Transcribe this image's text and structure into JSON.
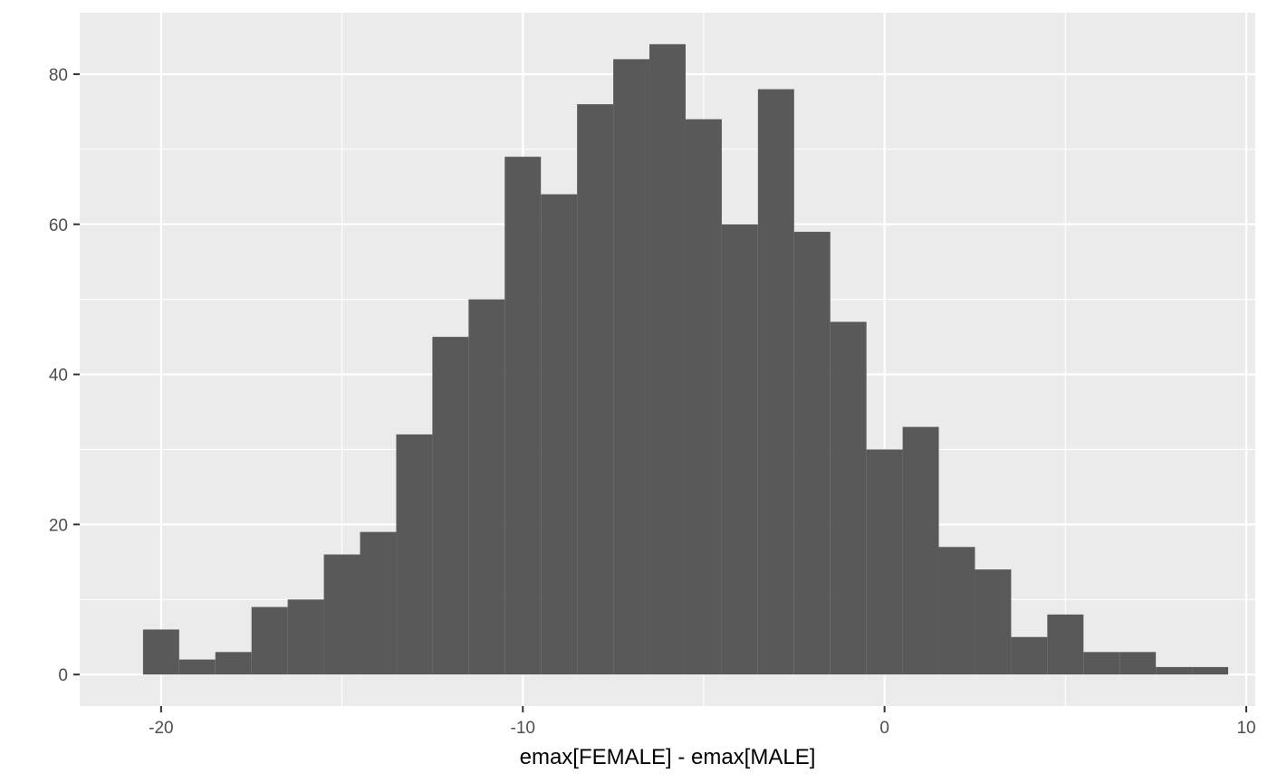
{
  "colors": {
    "panel": "#ebebeb",
    "grid_major": "#ffffff",
    "bar": "#595959",
    "tick": "#333333",
    "tick_label": "#4d4d4d"
  },
  "chart_data": {
    "type": "bar",
    "subtype": "histogram",
    "title": "",
    "xlabel": "emax[FEMALE] - emax[MALE]",
    "ylabel": "",
    "xlim": [
      -22.25,
      10.25
    ],
    "ylim": [
      -4.2,
      88.2
    ],
    "bin_width": 1,
    "x_ticks": [
      -20,
      -10,
      0,
      10
    ],
    "x_tick_labels": [
      "-20",
      "-10",
      "0",
      "10"
    ],
    "y_ticks": [
      0,
      20,
      40,
      60,
      80
    ],
    "y_tick_labels": [
      "0",
      "20",
      "40",
      "60",
      "80"
    ],
    "grid": true,
    "bins": [
      {
        "center": -20,
        "count": 6
      },
      {
        "center": -19,
        "count": 2
      },
      {
        "center": -18,
        "count": 3
      },
      {
        "center": -17,
        "count": 9
      },
      {
        "center": -16,
        "count": 10
      },
      {
        "center": -15,
        "count": 16
      },
      {
        "center": -14,
        "count": 19
      },
      {
        "center": -13,
        "count": 32
      },
      {
        "center": -12,
        "count": 45
      },
      {
        "center": -11,
        "count": 50
      },
      {
        "center": -10,
        "count": 69
      },
      {
        "center": -9,
        "count": 64
      },
      {
        "center": -8,
        "count": 76
      },
      {
        "center": -7,
        "count": 82
      },
      {
        "center": -6,
        "count": 84
      },
      {
        "center": -5,
        "count": 74
      },
      {
        "center": -4,
        "count": 60
      },
      {
        "center": -3,
        "count": 78
      },
      {
        "center": -2,
        "count": 59
      },
      {
        "center": -1,
        "count": 47
      },
      {
        "center": 0,
        "count": 30
      },
      {
        "center": 1,
        "count": 33
      },
      {
        "center": 2,
        "count": 17
      },
      {
        "center": 3,
        "count": 14
      },
      {
        "center": 4,
        "count": 5
      },
      {
        "center": 5,
        "count": 8
      },
      {
        "center": 6,
        "count": 3
      },
      {
        "center": 7,
        "count": 3
      },
      {
        "center": 8,
        "count": 1
      },
      {
        "center": 9,
        "count": 1
      }
    ]
  }
}
